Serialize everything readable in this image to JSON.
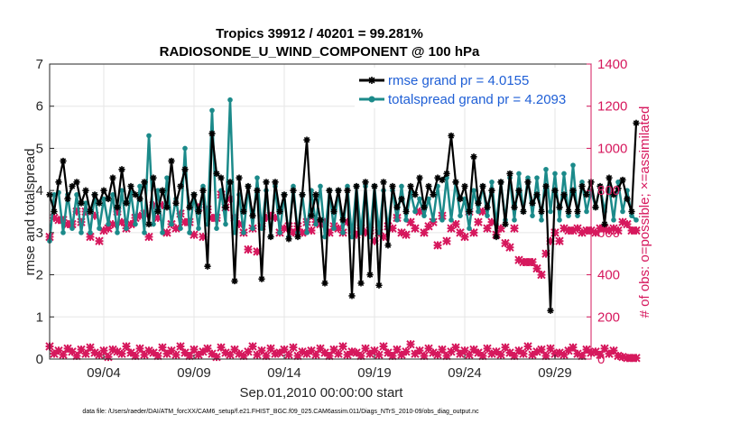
{
  "chart_data": {
    "type": "line",
    "title": "Tropics 39912 / 40201 = 99.281%",
    "subtitle": "RADIOSONDE_U_WIND_COMPONENT @ 100 hPa",
    "xlabel": "Sep.01,2010 00:00:00 start",
    "ylabel_left": "rmse and totalspread",
    "ylabel_right": "# of obs: o=possible; ×=assimilated",
    "ylim_left": [
      0,
      7
    ],
    "ylim_right": [
      0,
      1400
    ],
    "yticks_left": [
      "0",
      "1",
      "2",
      "3",
      "4",
      "5",
      "6",
      "7"
    ],
    "yticks_right": [
      "0",
      "200",
      "400",
      "600",
      "800",
      "1000",
      "1200",
      "1400"
    ],
    "xlim_days": [
      1.0,
      31.0
    ],
    "xticks": [
      {
        "day": 4,
        "label": "09/04"
      },
      {
        "day": 9,
        "label": "09/09"
      },
      {
        "day": 14,
        "label": "09/14"
      },
      {
        "day": 19,
        "label": "09/19"
      },
      {
        "day": 24,
        "label": "09/24"
      },
      {
        "day": 29,
        "label": "09/29"
      }
    ],
    "day_start": 1.0,
    "day_step": 0.25,
    "series": [
      {
        "name": "rmse",
        "legend": "rmse grand pr = 4.0155",
        "color": "#000000",
        "marker": "asterisk",
        "values": [
          3.9,
          3.5,
          4.2,
          4.7,
          3.8,
          4.1,
          4.2,
          3.7,
          4.0,
          3.5,
          3.9,
          3.7,
          4.0,
          3.8,
          4.3,
          3.6,
          4.5,
          3.7,
          4.1,
          3.9,
          3.8,
          4.2,
          3.2,
          4.3,
          3.5,
          4.0,
          3.6,
          4.7,
          3.7,
          4.1,
          4.5,
          3.6,
          3.9,
          3.5,
          4.0,
          2.2,
          5.35,
          4.4,
          4.3,
          3.6,
          4.2,
          1.85,
          4.3,
          3.5,
          4.1,
          3.4,
          4.0,
          1.9,
          4.2,
          2.9,
          4.2,
          3.5,
          3.9,
          2.85,
          4.0,
          2.9,
          3.9,
          5.2,
          3.4,
          3.9,
          3.3,
          1.8,
          4.0,
          3.5,
          4.0,
          3.3,
          4.0,
          1.5,
          4.1,
          1.8,
          4.2,
          2.0,
          4.1,
          1.75,
          4.2,
          2.7,
          4.1,
          3.6,
          3.8,
          3.5,
          4.1,
          3.9,
          4.3,
          3.6,
          4.1,
          3.9,
          4.3,
          4.25,
          4.4,
          5.3,
          4.2,
          3.8,
          4.1,
          3.5,
          4.8,
          3.7,
          4.1,
          3.6,
          4.0,
          2.9,
          4.2,
          3.2,
          4.4,
          3.6,
          4.0,
          3.5,
          4.2,
          3.7,
          3.9,
          3.5,
          4.1,
          1.15,
          4.0,
          3.6,
          3.9,
          3.5,
          4.0,
          3.5,
          4.1,
          3.9,
          4.2,
          3.6,
          4.1,
          3.2,
          4.3,
          3.9,
          4.05,
          4.25,
          3.8,
          3.5,
          5.6
        ]
      },
      {
        "name": "totalspread",
        "legend": "totalspread grand pr = 4.2093",
        "color": "#1b8a8a",
        "marker": "circle",
        "values": [
          2.8,
          3.9,
          3.95,
          3.0,
          3.9,
          3.1,
          3.9,
          3.0,
          3.7,
          3.0,
          3.9,
          3.1,
          3.8,
          3.2,
          3.9,
          3.0,
          4.0,
          3.1,
          3.95,
          3.2,
          4.1,
          3.0,
          5.3,
          3.2,
          4.0,
          3.0,
          4.3,
          3.2,
          3.8,
          3.1,
          5.0,
          3.0,
          3.9,
          3.1,
          4.1,
          3.2,
          5.9,
          3.1,
          4.0,
          3.2,
          6.15,
          3.0,
          3.9,
          3.0,
          4.1,
          3.1,
          4.3,
          3.1,
          4.0,
          2.9,
          4.1,
          3.0,
          3.9,
          2.9,
          4.1,
          3.0,
          3.9,
          3.0,
          4.0,
          3.2,
          4.1,
          2.9,
          4.0,
          3.1,
          4.0,
          3.0,
          4.1,
          2.9,
          4.1,
          3.0,
          4.1,
          2.9,
          4.1,
          3.0,
          4.0,
          3.1,
          4.0,
          3.3,
          4.1,
          3.3,
          3.95,
          3.5,
          3.8,
          3.4,
          3.8,
          3.3,
          4.1,
          3.3,
          4.3,
          3.3,
          4.2,
          3.4,
          3.8,
          3.1,
          4.0,
          3.5,
          4.1,
          3.4,
          4.2,
          3.2,
          4.2,
          3.3,
          4.3,
          3.3,
          4.4,
          3.5,
          4.3,
          3.4,
          4.3,
          3.3,
          4.5,
          3.5,
          4.4,
          3.3,
          4.4,
          3.4,
          4.6,
          3.4,
          4.2,
          3.5,
          4.0,
          3.6,
          4.1,
          3.5,
          4.1,
          3.3,
          4.2,
          3.5,
          4.0,
          3.4,
          3.3
        ]
      },
      {
        "name": "assimilated",
        "color": "#d6185d",
        "marker": "x",
        "axis": "right",
        "values": [
          580,
          670,
          660,
          660,
          640,
          640,
          700,
          650,
          700,
          580,
          680,
          560,
          610,
          620,
          640,
          700,
          650,
          620,
          640,
          670,
          680,
          690,
          580,
          730,
          670,
          730,
          600,
          640,
          620,
          690,
          650,
          650,
          590,
          720,
          580,
          710,
          670,
          670,
          780,
          720,
          760,
          670,
          640,
          600,
          520,
          620,
          510,
          630,
          670,
          680,
          670,
          600,
          620,
          630,
          600,
          630,
          600,
          650,
          610,
          650,
          640,
          650,
          600,
          630,
          620,
          600,
          650,
          610,
          590,
          620,
          600,
          610,
          560,
          600,
          580,
          630,
          620,
          670,
          600,
          590,
          650,
          620,
          700,
          600,
          630,
          650,
          540,
          680,
          560,
          620,
          640,
          600,
          580,
          700,
          600,
          650,
          700,
          620,
          650,
          590,
          620,
          550,
          530,
          620,
          470,
          460,
          460,
          460,
          430,
          400,
          500,
          560,
          600,
          560,
          620,
          610,
          610,
          620,
          600,
          610,
          610,
          600,
          620,
          620,
          610,
          620,
          610,
          650,
          640,
          610,
          610
        ]
      },
      {
        "name": "possible",
        "color": "#d6185d",
        "marker": "x",
        "axis": "right",
        "values": [
          60,
          25,
          40,
          20,
          50,
          35,
          15,
          45,
          25,
          55,
          30,
          20,
          40,
          10,
          45,
          35,
          25,
          60,
          30,
          15,
          50,
          20,
          40,
          30,
          15,
          55,
          25,
          40,
          20,
          60,
          30,
          15,
          45,
          20,
          35,
          50,
          25,
          10,
          55,
          30,
          20,
          45,
          25,
          15,
          35,
          60,
          20,
          40,
          15,
          50,
          25,
          30,
          45,
          20,
          55,
          15,
          35,
          25,
          40,
          20,
          50,
          30,
          15,
          45,
          25,
          60,
          20,
          35,
          30,
          15,
          50,
          25,
          40,
          20,
          60,
          30,
          15,
          45,
          20,
          35,
          70,
          25,
          40,
          15,
          50,
          30,
          20,
          45,
          15,
          35,
          55,
          25,
          40,
          20,
          45,
          30,
          15,
          50,
          25,
          35,
          20,
          55,
          30,
          15,
          40,
          25,
          60,
          20,
          35,
          45,
          15,
          50,
          25,
          30,
          20,
          40,
          55,
          25,
          15,
          45,
          30,
          35,
          20,
          50,
          25,
          40,
          15,
          10,
          5,
          5,
          5
        ]
      }
    ],
    "footnote": "data file: /Users/raeder/DAI/ATM_forcXX/CAM6_setup/f.e21.FHIST_BGC.f09_025.CAM6assim.011/Diags_NTrS_2010-09/obs_diag_output.nc"
  }
}
